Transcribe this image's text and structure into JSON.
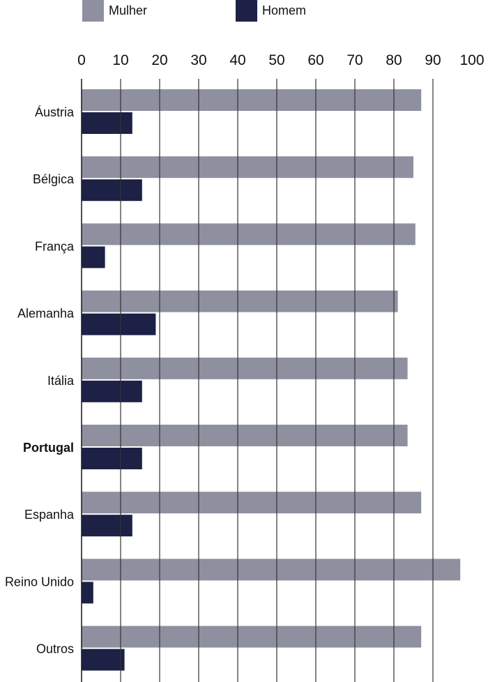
{
  "chart_data": {
    "type": "bar",
    "orientation": "horizontal",
    "categories": [
      "Áustria",
      "Bélgica",
      "França",
      "Alemanha",
      "Itália",
      "Portugal",
      "Espanha",
      "Reino Unido",
      "Outros"
    ],
    "highlight_category": "Portugal",
    "series": [
      {
        "name": "Mulher",
        "color": "#8e909f",
        "values": [
          87,
          85,
          85.5,
          81,
          83.5,
          83.5,
          87,
          97,
          87
        ]
      },
      {
        "name": "Homem",
        "color": "#1c2145",
        "values": [
          13,
          15.5,
          6,
          19,
          15.5,
          15.5,
          13,
          3,
          11
        ]
      }
    ],
    "xlim": [
      0,
      100
    ],
    "x_ticks": [
      "0",
      "10",
      "20",
      "30",
      "40",
      "50",
      "60",
      "70",
      "80",
      "90",
      "100"
    ],
    "grid": true,
    "legend_position": "top-left"
  }
}
